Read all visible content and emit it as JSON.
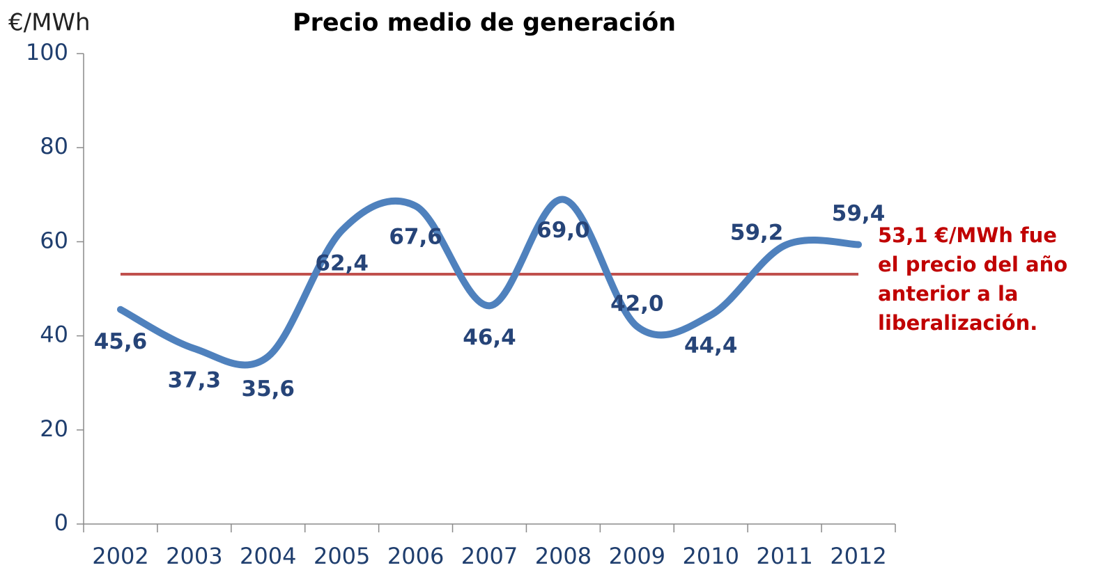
{
  "chart_data": {
    "type": "line",
    "title": "Precio medio de generación",
    "y_label": "€/MWh",
    "categories": [
      "2002",
      "2003",
      "2004",
      "2005",
      "2006",
      "2007",
      "2008",
      "2009",
      "2010",
      "2011",
      "2012"
    ],
    "series": [
      {
        "name": "Precio medio de generación",
        "color": "#4f81bd",
        "values": [
          45.6,
          37.3,
          35.6,
          62.4,
          67.6,
          46.4,
          69.0,
          42.0,
          44.4,
          59.2,
          59.4
        ],
        "value_labels": [
          "45,6",
          "37,3",
          "35,6",
          "62,4",
          "67,6",
          "46,4",
          "69,0",
          "42,0",
          "44,4",
          "59,2",
          "59,4"
        ]
      }
    ],
    "ylim": [
      0,
      100
    ],
    "yticks": [
      0,
      20,
      40,
      60,
      80,
      100
    ],
    "smooth": true,
    "reference_line": {
      "value": 53.1,
      "color": "#c0504d"
    },
    "annotation": [
      "53,1 €/MWh fue",
      "el precio del año",
      "anterior a la",
      "liberalización."
    ]
  }
}
